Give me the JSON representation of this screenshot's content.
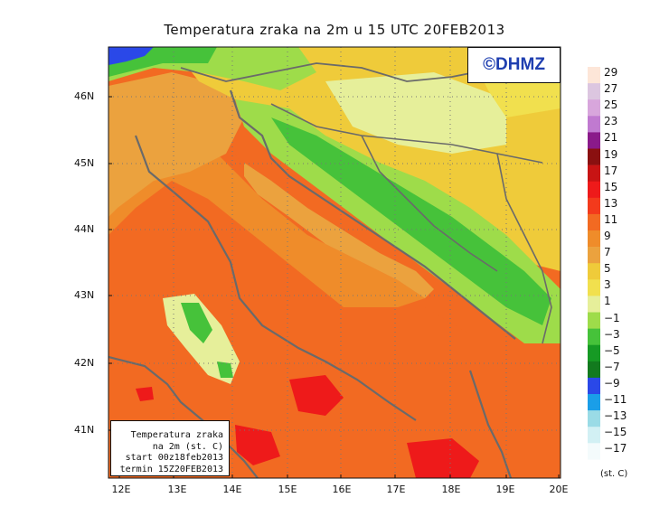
{
  "title": "Temperatura zraka na 2m u 15 UTC 20FEB2013",
  "logo": "©DHMZ",
  "info": {
    "line1": "Temperatura zraka",
    "line2": "na 2m (st. C)",
    "line3": "start 00z18feb2013",
    "line4": "termin 15Z20FEB2013"
  },
  "axes": {
    "lat_labels": [
      "46N",
      "45N",
      "44N",
      "43N",
      "42N",
      "41N"
    ],
    "lon_labels": [
      "12E",
      "13E",
      "14E",
      "15E",
      "16E",
      "17E",
      "18E",
      "19E",
      "20E"
    ]
  },
  "legend": {
    "unit": "(st. C)",
    "labels": [
      "29",
      "27",
      "25",
      "23",
      "21",
      "19",
      "17",
      "15",
      "13",
      "11",
      "9",
      "7",
      "5",
      "3",
      "1",
      "−1",
      "−3",
      "−5",
      "−7",
      "−9",
      "−11",
      "−13",
      "−15",
      "−17"
    ],
    "colors": [
      "#fde6d8",
      "#dcc6e0",
      "#d8a6dc",
      "#c07ad0",
      "#8a1a8a",
      "#8a1010",
      "#c81414",
      "#ee1a1a",
      "#f33a1c",
      "#f26a22",
      "#ef8c2a",
      "#eba23e",
      "#efcb3a",
      "#f1e04e",
      "#e6ef9a",
      "#9edc4a",
      "#46c23a",
      "#169a24",
      "#127a1e",
      "#2a48e8",
      "#1a9ee8",
      "#9adbe6",
      "#d2f0f4",
      "#f4fbfc"
    ]
  },
  "colors": {
    "sea_warm": "#f26a22",
    "sea_mid": "#ef8c2a",
    "hot_spots": "#ee1a1a",
    "land_cool": "#9edc4a",
    "mountains": "#46c23a",
    "north_land": "#efcb3a"
  }
}
